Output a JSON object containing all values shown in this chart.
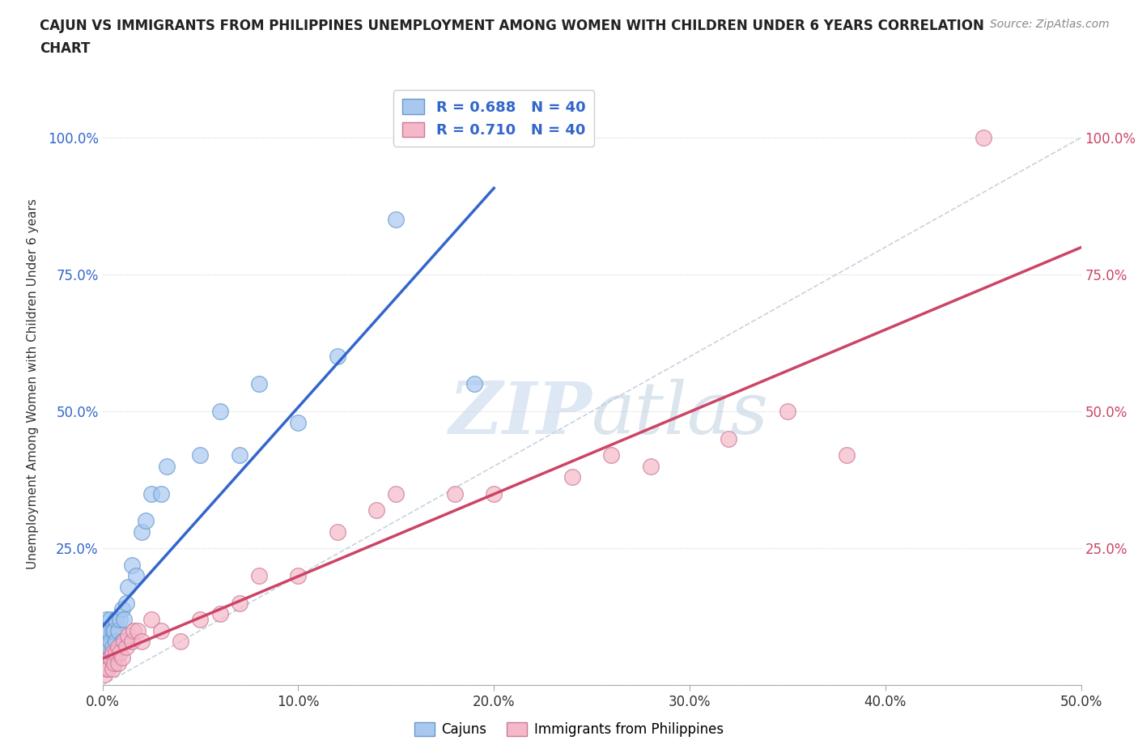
{
  "title_line1": "CAJUN VS IMMIGRANTS FROM PHILIPPINES UNEMPLOYMENT AMONG WOMEN WITH CHILDREN UNDER 6 YEARS CORRELATION",
  "title_line2": "CHART",
  "source": "Source: ZipAtlas.com",
  "ylabel": "Unemployment Among Women with Children Under 6 years",
  "xlim": [
    0.0,
    0.5
  ],
  "ylim": [
    0.0,
    1.1
  ],
  "xticks": [
    0.0,
    0.1,
    0.2,
    0.3,
    0.4,
    0.5
  ],
  "yticks": [
    0.0,
    0.25,
    0.5,
    0.75,
    1.0
  ],
  "xtick_labels": [
    "0.0%",
    "10.0%",
    "20.0%",
    "30.0%",
    "40.0%",
    "50.0%"
  ],
  "ytick_labels_left": [
    "",
    "25.0%",
    "50.0%",
    "75.0%",
    "100.0%"
  ],
  "ytick_labels_right": [
    "",
    "25.0%",
    "50.0%",
    "75.0%",
    "100.0%"
  ],
  "cajun_color": "#A8C8F0",
  "cajun_edge_color": "#6699CC",
  "phil_color": "#F5B8C8",
  "phil_edge_color": "#CC7799",
  "cajun_R": 0.688,
  "cajun_N": 40,
  "phil_R": 0.71,
  "phil_N": 40,
  "reference_line_color": "#B8C8D8",
  "cajun_trend_color": "#3366CC",
  "phil_trend_color": "#CC4466",
  "left_tick_color": "#3366CC",
  "right_tick_color": "#CC4466",
  "background_color": "#FFFFFF",
  "cajun_x": [
    0.001,
    0.001,
    0.001,
    0.002,
    0.002,
    0.003,
    0.003,
    0.003,
    0.004,
    0.004,
    0.004,
    0.005,
    0.005,
    0.005,
    0.006,
    0.006,
    0.007,
    0.007,
    0.008,
    0.009,
    0.01,
    0.01,
    0.011,
    0.012,
    0.013,
    0.015,
    0.017,
    0.02,
    0.022,
    0.025,
    0.03,
    0.033,
    0.05,
    0.06,
    0.07,
    0.08,
    0.1,
    0.12,
    0.15,
    0.19
  ],
  "cajun_y": [
    0.05,
    0.08,
    0.1,
    0.05,
    0.12,
    0.04,
    0.07,
    0.1,
    0.05,
    0.08,
    0.12,
    0.04,
    0.07,
    0.1,
    0.06,
    0.1,
    0.08,
    0.12,
    0.1,
    0.12,
    0.08,
    0.14,
    0.12,
    0.15,
    0.18,
    0.22,
    0.2,
    0.28,
    0.3,
    0.35,
    0.35,
    0.4,
    0.42,
    0.5,
    0.42,
    0.55,
    0.48,
    0.6,
    0.85,
    0.55
  ],
  "phil_x": [
    0.001,
    0.001,
    0.002,
    0.003,
    0.004,
    0.005,
    0.005,
    0.006,
    0.007,
    0.008,
    0.008,
    0.009,
    0.01,
    0.011,
    0.012,
    0.013,
    0.015,
    0.016,
    0.018,
    0.02,
    0.025,
    0.03,
    0.04,
    0.05,
    0.06,
    0.07,
    0.08,
    0.1,
    0.12,
    0.14,
    0.15,
    0.18,
    0.2,
    0.24,
    0.26,
    0.28,
    0.32,
    0.35,
    0.38,
    0.45
  ],
  "phil_y": [
    0.02,
    0.04,
    0.03,
    0.03,
    0.05,
    0.03,
    0.06,
    0.04,
    0.06,
    0.04,
    0.07,
    0.06,
    0.05,
    0.08,
    0.07,
    0.09,
    0.08,
    0.1,
    0.1,
    0.08,
    0.12,
    0.1,
    0.08,
    0.12,
    0.13,
    0.15,
    0.2,
    0.2,
    0.28,
    0.32,
    0.35,
    0.35,
    0.35,
    0.38,
    0.42,
    0.4,
    0.45,
    0.5,
    0.42,
    1.0
  ]
}
